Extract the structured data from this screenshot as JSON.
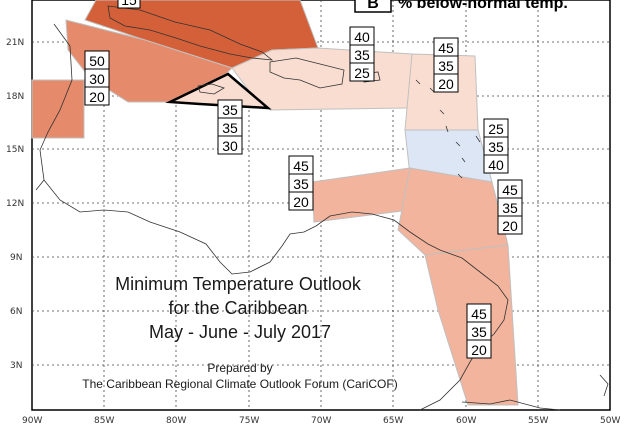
{
  "map": {
    "title_lines": [
      "Minimum Temperature Outlook",
      "for the Caribbean",
      "May - June - July 2017"
    ],
    "credit_lines": [
      "Prepared by",
      "The Caribbean Regional Climate Outlook Forum (CariCOF)"
    ],
    "legend": {
      "letter": "B",
      "text": "% below-normal temp."
    },
    "lat_ticks": [
      "21N",
      "18N",
      "15N",
      "12N",
      "9N",
      "6N",
      "3N"
    ],
    "lon_ticks": [
      "90W",
      "85W",
      "80W",
      "75W",
      "70W",
      "65W",
      "60W",
      "55W",
      "50W"
    ],
    "colors": {
      "above_strong": "#d4603a",
      "above_moderate": "#e58a6a",
      "above_light": "#f2b49c",
      "above_faint": "#f9ddd0",
      "below_faint": "#dde6f5",
      "region_border": "#c0c0c0",
      "highlight_border": "#000000",
      "coastline": "#333333"
    },
    "regions": [
      {
        "id": "bahamas",
        "top_label": "15",
        "probs": [],
        "fill": "above_strong"
      },
      {
        "id": "cuba",
        "probs": [],
        "fill": "above_moderate"
      },
      {
        "id": "hispaniola",
        "probs": [
          "40",
          "35",
          "25"
        ],
        "fill": "above_faint"
      },
      {
        "id": "leewards-north",
        "probs": [
          "45",
          "35",
          "20"
        ],
        "fill": "above_faint"
      },
      {
        "id": "belize",
        "probs": [
          "50",
          "30",
          "20"
        ],
        "fill": "above_moderate"
      },
      {
        "id": "jamaica",
        "probs": [
          "35",
          "35",
          "30"
        ],
        "fill": "above_faint"
      },
      {
        "id": "windwards",
        "probs": [
          "25",
          "35",
          "40"
        ],
        "fill": "below_faint"
      },
      {
        "id": "abc-islands",
        "probs": [
          "45",
          "35",
          "20"
        ],
        "fill": "above_light"
      },
      {
        "id": "trinidad",
        "probs": [
          "45",
          "35",
          "20"
        ],
        "fill": "above_light"
      },
      {
        "id": "guianas",
        "probs": [
          "45",
          "35",
          "20"
        ],
        "fill": "above_light"
      }
    ]
  }
}
